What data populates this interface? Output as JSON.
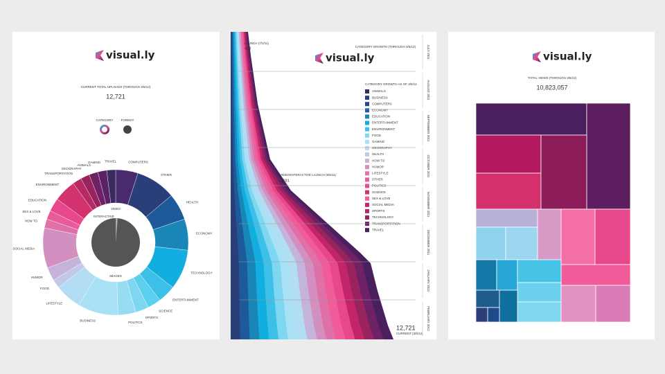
{
  "panels": [
    {
      "logo": "visual.ly",
      "title": "CURRENT TOTAL UPLOADS (THROUGH 3/5/12)",
      "total": "12,721",
      "toggle": [
        "CATEGORY",
        "FORMAT"
      ],
      "donut": {
        "labels": [
          "COMPUTERS",
          "OTHER",
          "HEALTH",
          "ECONOMY",
          "TECHNOLOGY",
          "ENTERTAINMENT",
          "SCIENCE",
          "SPORTS",
          "POLITICS",
          "BUSINESS",
          "LIFESTYLE",
          "FOOD",
          "HUMOR",
          "SOCIAL MEDIA",
          "HOW TO",
          "SEX & LOVE",
          "EDUCATION",
          "ENVIRONMENT",
          "TRANSPORTATION",
          "GEOGRAPHY",
          "ANIMALS",
          "GAMING",
          "TRAVEL"
        ],
        "values": [
          5,
          9,
          6,
          7,
          9,
          4,
          3,
          3,
          4,
          9,
          6,
          2,
          3,
          9,
          2,
          2,
          3,
          5,
          2,
          2,
          2,
          2,
          2
        ],
        "colors": [
          "#4a2a6e",
          "#2a3f7a",
          "#1e5a9a",
          "#1a86b8",
          "#12aee0",
          "#3cc0e8",
          "#5ccfee",
          "#7fd6f0",
          "#96dcf3",
          "#a8e0f5",
          "#b3ddf2",
          "#c3c8e6",
          "#c4b4da",
          "#d38fc0",
          "#e070a8",
          "#e85a9a",
          "#e8478c",
          "#d2336f",
          "#b52a65",
          "#98235e",
          "#6e2266",
          "#5b2167",
          "#3d2a5e"
        ]
      },
      "inner_labels": [
        "VIDEO",
        "INTERACTIVE",
        "IMAGES"
      ]
    },
    {
      "logo": "visual.ly",
      "launch_label": "LAUNCH (7/1/11)",
      "launch_value": "428",
      "title": "CATEGORY GROWTH (THROUGH 3/5/12)",
      "months": [
        "JULY 2011",
        "AUGUST 2011",
        "SEPTEMBER 2011",
        "OCTOBER 2011",
        "NOVEMBER 2011",
        "DECEMBER 2011",
        "JANUARY 2012",
        "FEBRUARY 2012"
      ],
      "mid_label": "VIDEO/INTERACTIVE LAUNCH (9/6/11)",
      "mid_value": "3,181",
      "end_value": "12,721",
      "end_label": "CURRENT (3/5/12)",
      "legend_title": "CATEGORY GROWTH AS OF 3/5/12",
      "legend": [
        "ANIMALS",
        "BUSINESS",
        "COMPUTERS",
        "ECONOMY",
        "EDUCATION",
        "ENTERTAINMENT",
        "ENVIRONMENT",
        "FOOD",
        "GAMING",
        "GEOGRAPHY",
        "HEALTH",
        "HOW TO",
        "HUMOR",
        "LIFESTYLE",
        "OTHER",
        "POLITICS",
        "SCIENCE",
        "SEX & LOVE",
        "SOCIAL MEDIA",
        "SPORTS",
        "TECHNOLOGY",
        "TRANSPORTATION",
        "TRAVEL"
      ],
      "legend_colors": [
        "#3d2a5e",
        "#2a3f7a",
        "#1e4a8a",
        "#1e5a9a",
        "#1a86b8",
        "#12aee0",
        "#3cc0e8",
        "#7fd6f0",
        "#a8e0f5",
        "#b3ddf2",
        "#c3c8e6",
        "#c4b4da",
        "#d38fc0",
        "#e070a8",
        "#e85a9a",
        "#e8478c",
        "#d2336f",
        "#f25b99",
        "#c2256a",
        "#b52a65",
        "#98235e",
        "#6e2266",
        "#4a1f5e"
      ]
    },
    {
      "logo": "visual.ly",
      "title": "TOTAL VIEWS (THROUGH 3/5/12)",
      "total": "10,823,057"
    }
  ]
}
